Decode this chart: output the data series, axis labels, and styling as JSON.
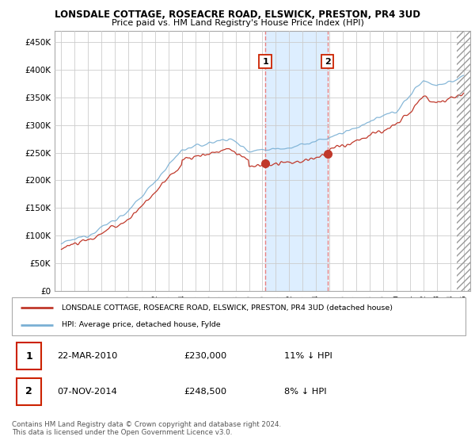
{
  "title": "LONSDALE COTTAGE, ROSEACRE ROAD, ELSWICK, PRESTON, PR4 3UD",
  "subtitle": "Price paid vs. HM Land Registry's House Price Index (HPI)",
  "ylabel_ticks": [
    "£0",
    "£50K",
    "£100K",
    "£150K",
    "£200K",
    "£250K",
    "£300K",
    "£350K",
    "£400K",
    "£450K"
  ],
  "ytick_values": [
    0,
    50000,
    100000,
    150000,
    200000,
    250000,
    300000,
    350000,
    400000,
    450000
  ],
  "ylim": [
    0,
    470000
  ],
  "xlim_start": 1994.5,
  "xlim_end": 2025.5,
  "hpi_color": "#7ab0d4",
  "price_color": "#c0392b",
  "marker1_date": 2010.22,
  "marker1_price": 230000,
  "marker2_date": 2014.85,
  "marker2_price": 248500,
  "shade_color": "#ddeeff",
  "dashed_color": "#e88080",
  "legend_label1": "LONSDALE COTTAGE, ROSEACRE ROAD, ELSWICK, PRESTON, PR4 3UD (detached house)",
  "legend_label2": "HPI: Average price, detached house, Fylde",
  "table_row1": [
    "1",
    "22-MAR-2010",
    "£230,000",
    "11% ↓ HPI"
  ],
  "table_row2": [
    "2",
    "07-NOV-2014",
    "£248,500",
    "8% ↓ HPI"
  ],
  "footer": "Contains HM Land Registry data © Crown copyright and database right 2024.\nThis data is licensed under the Open Government Licence v3.0.",
  "background_color": "#ffffff",
  "plot_bg_color": "#ffffff"
}
